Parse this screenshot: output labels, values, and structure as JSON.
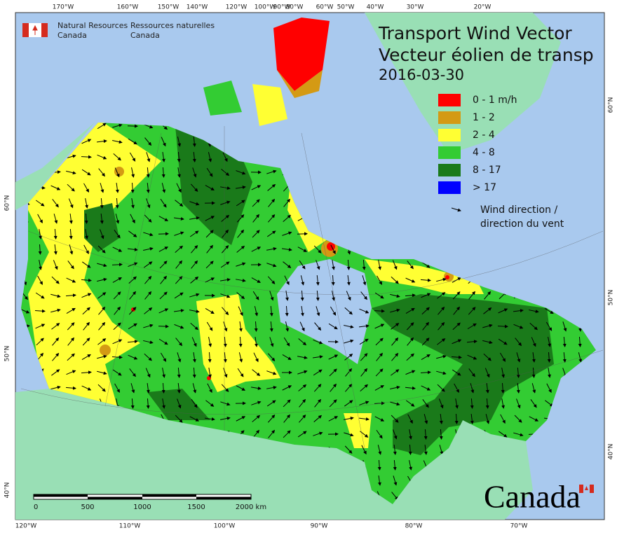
{
  "header": {
    "agency_en": [
      "Natural Resources",
      "Canada"
    ],
    "agency_fr": [
      "Ressources naturelles",
      "Canada"
    ]
  },
  "title": {
    "lines": [
      "Transport Wind Vector",
      "Vecteur éolien de transp"
    ],
    "date": "2016-03-30"
  },
  "legend": {
    "items": [
      {
        "label": "0 - 1 m/h",
        "color": "#ff0000"
      },
      {
        "label": "1 - 2",
        "color": "#d49a14"
      },
      {
        "label": "2 - 4",
        "color": "#ffff33"
      },
      {
        "label": "4 - 8",
        "color": "#33cc33"
      },
      {
        "label": "8 - 17",
        "color": "#1a7a1a"
      },
      {
        "label": "> 17",
        "color": "#0000ff"
      }
    ],
    "arrow_label": [
      "Wind direction /",
      "direction du vent"
    ]
  },
  "graticule": {
    "top": [
      "170°W",
      "160°W",
      "150°W",
      "140°W",
      "120°W",
      "100°W",
      "90°W",
      "80°W",
      "60°W",
      "50°W",
      "40°W",
      "30°W",
      "20°W"
    ],
    "bottom": [
      "120°W",
      "110°W",
      "100°W",
      "90°W",
      "80°W",
      "70°W"
    ],
    "left": [
      "60°N",
      "50°N",
      "40°N"
    ],
    "right": [
      "60°N",
      "50°N",
      "40°N"
    ]
  },
  "scale_bar": {
    "labels": [
      "0",
      "500",
      "1000",
      "1500",
      "2000 km"
    ]
  },
  "wordmark": "Canada"
}
